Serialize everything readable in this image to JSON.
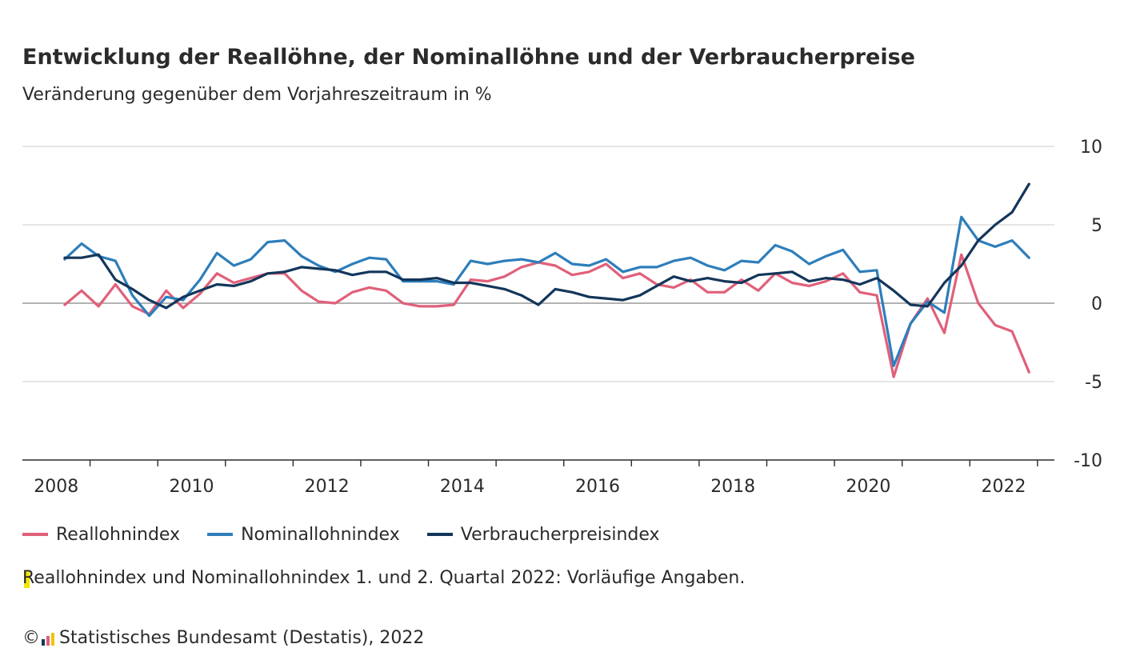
{
  "header": {
    "title": "Entwicklung der Reallöhne, der Nominallöhne und der Verbraucherpreise",
    "subtitle": "Veränderung gegenüber dem Vorjahreszeitraum in %"
  },
  "legend": {
    "items": [
      {
        "label": "Reallohnindex",
        "color": "#e0607a"
      },
      {
        "label": "Nominallohnindex",
        "color": "#2e7ebb"
      },
      {
        "label": "Verbraucherpreisindex",
        "color": "#13365a"
      }
    ]
  },
  "footer": {
    "note": "Reallohnindex und Nominallohnindex 1. und 2. Quartal 2022: Vorläufige Angaben.",
    "copyright_symbol": "©",
    "source": "Statistisches Bundesamt (Destatis), 2022",
    "logo_icon": "destatis-bars-icon"
  },
  "chart_data": {
    "type": "line",
    "x": [
      "2008-Q1",
      "2008-Q2",
      "2008-Q3",
      "2008-Q4",
      "2009-Q1",
      "2009-Q2",
      "2009-Q3",
      "2009-Q4",
      "2010-Q1",
      "2010-Q2",
      "2010-Q3",
      "2010-Q4",
      "2011-Q1",
      "2011-Q2",
      "2011-Q3",
      "2011-Q4",
      "2012-Q1",
      "2012-Q2",
      "2012-Q3",
      "2012-Q4",
      "2013-Q1",
      "2013-Q2",
      "2013-Q3",
      "2013-Q4",
      "2014-Q1",
      "2014-Q2",
      "2014-Q3",
      "2014-Q4",
      "2015-Q1",
      "2015-Q2",
      "2015-Q3",
      "2015-Q4",
      "2016-Q1",
      "2016-Q2",
      "2016-Q3",
      "2016-Q4",
      "2017-Q1",
      "2017-Q2",
      "2017-Q3",
      "2017-Q4",
      "2018-Q1",
      "2018-Q2",
      "2018-Q3",
      "2018-Q4",
      "2019-Q1",
      "2019-Q2",
      "2019-Q3",
      "2019-Q4",
      "2020-Q1",
      "2020-Q2",
      "2020-Q3",
      "2020-Q4",
      "2021-Q1",
      "2021-Q2",
      "2021-Q3",
      "2021-Q4",
      "2022-Q1",
      "2022-Q2"
    ],
    "series": [
      {
        "name": "Reallohnindex",
        "color": "#e0607a",
        "values": [
          -0.1,
          0.8,
          -0.2,
          1.2,
          -0.2,
          -0.7,
          0.8,
          -0.3,
          0.6,
          1.9,
          1.3,
          1.6,
          1.9,
          1.9,
          0.8,
          0.1,
          0.0,
          0.7,
          1.0,
          0.8,
          0.0,
          -0.2,
          -0.2,
          -0.1,
          1.5,
          1.4,
          1.7,
          2.3,
          2.6,
          2.4,
          1.8,
          2.0,
          2.5,
          1.6,
          1.9,
          1.2,
          1.0,
          1.5,
          0.7,
          0.7,
          1.5,
          0.8,
          1.9,
          1.3,
          1.1,
          1.4,
          1.9,
          0.7,
          0.5,
          -4.7,
          -1.3,
          0.3,
          -1.9,
          3.1,
          0.0,
          -1.4,
          -1.8,
          -4.4
        ]
      },
      {
        "name": "Nominallohnindex",
        "color": "#2e7ebb",
        "values": [
          2.8,
          3.8,
          3.0,
          2.7,
          0.5,
          -0.8,
          0.4,
          0.2,
          1.5,
          3.2,
          2.4,
          2.8,
          3.9,
          4.0,
          3.0,
          2.4,
          2.0,
          2.5,
          2.9,
          2.8,
          1.4,
          1.4,
          1.4,
          1.2,
          2.7,
          2.5,
          2.7,
          2.8,
          2.6,
          3.2,
          2.5,
          2.4,
          2.8,
          2.0,
          2.3,
          2.3,
          2.7,
          2.9,
          2.4,
          2.1,
          2.7,
          2.6,
          3.7,
          3.3,
          2.5,
          3.0,
          3.4,
          2.0,
          2.1,
          -4.0,
          -1.3,
          0.1,
          -0.6,
          5.5,
          4.0,
          3.6,
          4.0,
          2.9
        ]
      },
      {
        "name": "Verbraucherpreisindex",
        "color": "#13365a",
        "values": [
          2.9,
          2.9,
          3.1,
          1.5,
          0.9,
          0.2,
          -0.3,
          0.4,
          0.8,
          1.2,
          1.1,
          1.4,
          1.9,
          2.0,
          2.3,
          2.2,
          2.1,
          1.8,
          2.0,
          2.0,
          1.5,
          1.5,
          1.6,
          1.3,
          1.3,
          1.1,
          0.9,
          0.5,
          -0.1,
          0.9,
          0.7,
          0.4,
          0.3,
          0.2,
          0.5,
          1.1,
          1.7,
          1.4,
          1.6,
          1.4,
          1.3,
          1.8,
          1.9,
          2.0,
          1.4,
          1.6,
          1.5,
          1.2,
          1.6,
          0.8,
          -0.1,
          -0.2,
          1.3,
          2.4,
          4.0,
          5.0,
          5.8,
          7.6
        ]
      }
    ],
    "ylim": [
      -10,
      10
    ],
    "yticks": [
      "10",
      "5",
      "0",
      "-5",
      "-10"
    ],
    "xticks": [
      "2008",
      "2010",
      "2012",
      "2014",
      "2016",
      "2018",
      "2020",
      "2022"
    ],
    "xlim_years": [
      2007.5,
      2022.75
    ],
    "y_axis_side": "right",
    "grid": "horizontal",
    "zero_line": true,
    "legend_position": "bottom-left",
    "gridline_color": "#cccccc",
    "axis_color": "#2b2b2b"
  }
}
